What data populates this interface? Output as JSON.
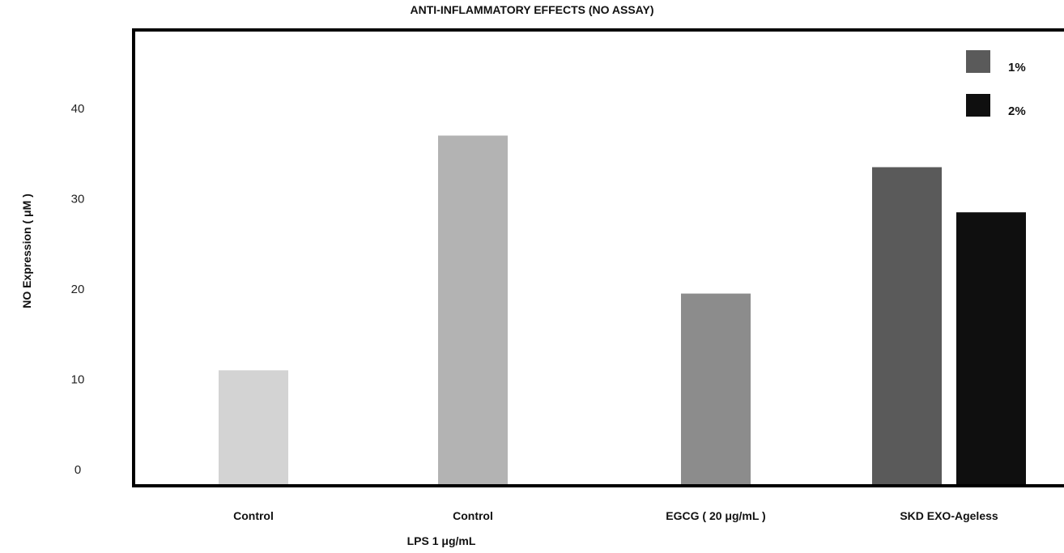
{
  "chart_data": {
    "type": "bar",
    "title": "ANTI-INFLAMMATORY EFFECTS (NO ASSAY)",
    "ylabel": "NO Expression ( μM )",
    "xlabel": "LPS 1 μg/mL",
    "ylim": [
      0,
      47
    ],
    "yticks": [
      0,
      10,
      20,
      30,
      40
    ],
    "grid": false,
    "legend_position": "top-right",
    "categories": [
      "Control",
      "Control",
      "EGCG ( 20 μg/mL )",
      "SKD EXO-Ageless"
    ],
    "bars": [
      {
        "category_index": 0,
        "value": 11.0,
        "color": "#d3d3d3"
      },
      {
        "category_index": 1,
        "value": 37.0,
        "color": "#b3b3b3"
      },
      {
        "category_index": 2,
        "value": 19.5,
        "color": "#8c8c8c"
      },
      {
        "category_index": 3,
        "series": "1%",
        "value": 33.5,
        "color": "#5a5a5a"
      },
      {
        "category_index": 3,
        "series": "2%",
        "value": 28.5,
        "color": "#0f0f0f"
      }
    ],
    "legend": [
      {
        "name": "1%",
        "color": "#5a5a5a"
      },
      {
        "name": "2%",
        "color": "#0f0f0f"
      }
    ]
  }
}
